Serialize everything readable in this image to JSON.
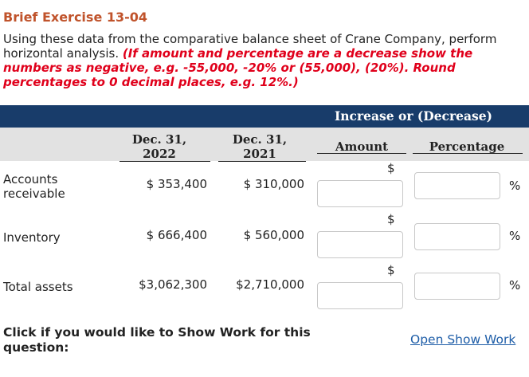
{
  "exercise": {
    "title": "Brief Exercise 13-04",
    "instruction_plain": "Using these data from the comparative balance sheet of Crane Company, perform horizontal analysis.",
    "instruction_red": "(If amount and percentage are a decrease show the numbers as negative, e.g. -55,000, -20% or (55,000), (20%). Round percentages to 0 decimal places, e.g. 12%.)"
  },
  "table": {
    "group_header": "Increase or (Decrease)",
    "col_2022": "Dec. 31,\n2022",
    "col_2021": "Dec. 31,\n2021",
    "col_amount": "Amount",
    "col_percentage": "Percentage",
    "currency_symbol": "$",
    "percent_symbol": "%",
    "rows": [
      {
        "label": "Accounts\nreceivable",
        "v2022": "$ 353,400",
        "v2021": "$ 310,000",
        "amount_value": "",
        "percentage_value": ""
      },
      {
        "label": "Inventory",
        "v2022": "$ 666,400",
        "v2021": "$ 560,000",
        "amount_value": "",
        "percentage_value": ""
      },
      {
        "label": "Total assets",
        "v2022": "$3,062,300",
        "v2021": "$2,710,000",
        "amount_value": "",
        "percentage_value": ""
      }
    ]
  },
  "show_work": {
    "prompt": "Click if you would like to Show Work for this question:",
    "link_label": "Open Show Work"
  },
  "colors": {
    "title": "#c0532b",
    "emphasis_red": "#e0001b",
    "header_navy": "#183c6a",
    "header_gray": "#e2e2e2",
    "link_blue": "#1f5ea8"
  }
}
